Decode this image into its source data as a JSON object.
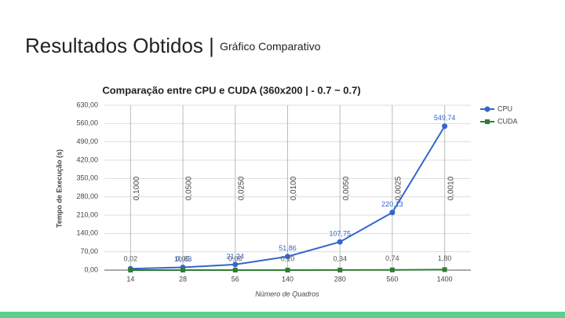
{
  "slide": {
    "title": "Resultados Obtidos | ",
    "subtitle": "Gráfico Comparativo"
  },
  "chart_data": {
    "type": "line",
    "title": "Comparação entre CPU e CUDA (360x200 | - 0.7 ~ 0.7)",
    "x_label": "Número de Quadros",
    "y_label": "Tempo de Execução (s)",
    "categories": [
      "14",
      "28",
      "56",
      "140",
      "280",
      "560",
      "1400"
    ],
    "series": [
      {
        "name": "CPU",
        "color": "#3366cc",
        "values": [
          5.3,
          10.63,
          21.24,
          51.86,
          107.75,
          220.13,
          549.74
        ],
        "value_labels": [
          null,
          "10,63",
          "21,24",
          "51,86",
          "107,75",
          "220,13",
          "549,74"
        ]
      },
      {
        "name": "CUDA",
        "color": "#2e7d32",
        "values": [
          0.02,
          0.05,
          0.06,
          0.1,
          0.34,
          0.74,
          1.8
        ],
        "value_labels": [
          "0,02",
          "0,05",
          "0,06",
          "0,10",
          "0,34",
          "0,74",
          "1,80"
        ]
      }
    ],
    "annotations": [
      "0,1000",
      "0,0500",
      "0,0250",
      "0,0100",
      "0,0050",
      "0,0025",
      "0,0010"
    ],
    "ylim": [
      0,
      630
    ],
    "yticks": [
      {
        "value": 0,
        "label": "0,00"
      },
      {
        "value": 70,
        "label": "70,00"
      },
      {
        "value": 140,
        "label": "140,00"
      },
      {
        "value": 210,
        "label": "210,00"
      },
      {
        "value": 280,
        "label": "280,00"
      },
      {
        "value": 350,
        "label": "350,00"
      },
      {
        "value": 420,
        "label": "420,00"
      },
      {
        "value": 490,
        "label": "490,00"
      },
      {
        "value": 560,
        "label": "560,00"
      },
      {
        "value": 630,
        "label": "630,00"
      }
    ],
    "grid": true,
    "legend": "right"
  }
}
